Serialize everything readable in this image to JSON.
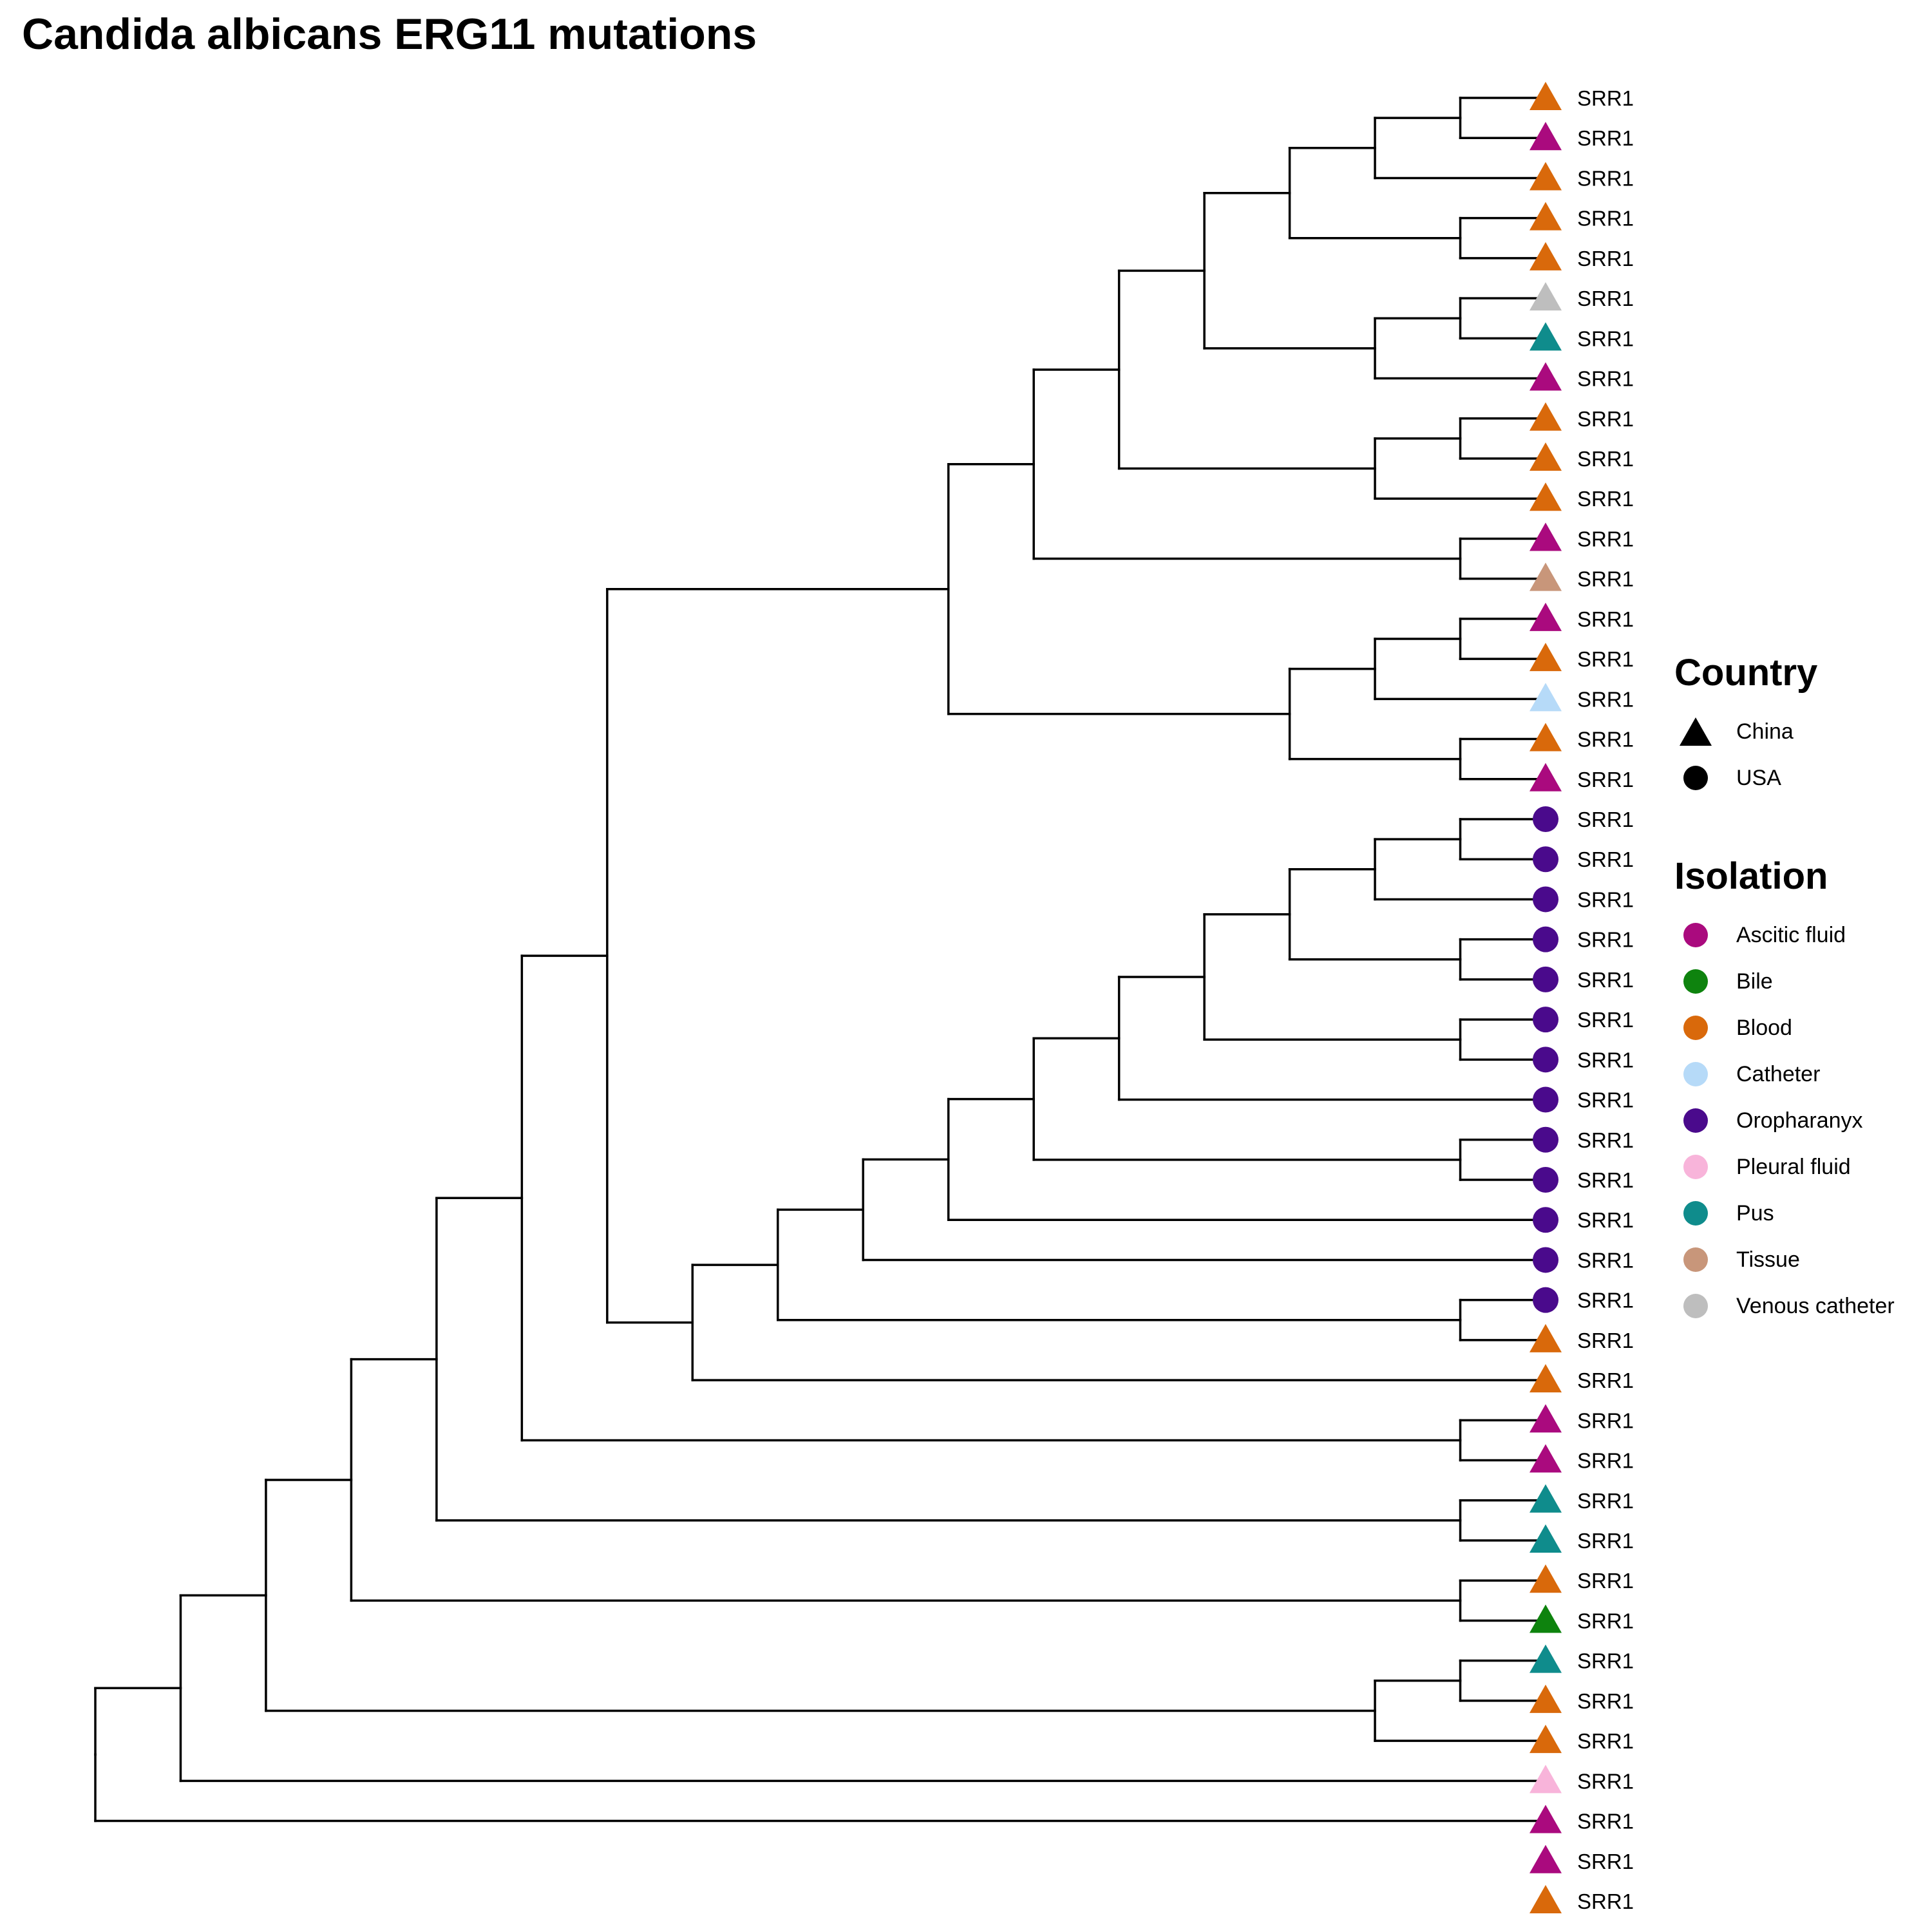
{
  "title": "Candida albicans ERG11 mutations",
  "legend": {
    "country_title": "Country",
    "country_items": [
      {
        "label": "China",
        "shape": "triangle"
      },
      {
        "label": "USA",
        "shape": "circle"
      }
    ],
    "isolation_title": "Isolation",
    "isolation_items": [
      {
        "label": "Ascitic fluid",
        "color": "#AA0A7E"
      },
      {
        "label": "Bile",
        "color": "#0E830E"
      },
      {
        "label": "Blood",
        "color": "#D9690B"
      },
      {
        "label": "Catheter",
        "color": "#B6DAF8"
      },
      {
        "label": "Oropharanyx",
        "color": "#4A0A8C"
      },
      {
        "label": "Pleural fluid",
        "color": "#F8B4DA"
      },
      {
        "label": "Pus",
        "color": "#0F8C8C"
      },
      {
        "label": "Tissue",
        "color": "#C8967A"
      },
      {
        "label": "Venous catheter",
        "color": "#BEBEBE"
      }
    ]
  },
  "tree": {
    "tips": [
      {
        "label": "SRR1",
        "isolation": "Blood",
        "country": "China"
      },
      {
        "label": "SRR1",
        "isolation": "Ascitic fluid",
        "country": "China"
      },
      {
        "label": "SRR1",
        "isolation": "Blood",
        "country": "China"
      },
      {
        "label": "SRR1",
        "isolation": "Blood",
        "country": "China"
      },
      {
        "label": "SRR1",
        "isolation": "Blood",
        "country": "China"
      },
      {
        "label": "SRR1",
        "isolation": "Venous catheter",
        "country": "China"
      },
      {
        "label": "SRR1",
        "isolation": "Pus",
        "country": "China"
      },
      {
        "label": "SRR1",
        "isolation": "Ascitic fluid",
        "country": "China"
      },
      {
        "label": "SRR1",
        "isolation": "Blood",
        "country": "China"
      },
      {
        "label": "SRR1",
        "isolation": "Blood",
        "country": "China"
      },
      {
        "label": "SRR1",
        "isolation": "Blood",
        "country": "China"
      },
      {
        "label": "SRR1",
        "isolation": "Ascitic fluid",
        "country": "China"
      },
      {
        "label": "SRR1",
        "isolation": "Tissue",
        "country": "China"
      },
      {
        "label": "SRR1",
        "isolation": "Ascitic fluid",
        "country": "China"
      },
      {
        "label": "SRR1",
        "isolation": "Blood",
        "country": "China"
      },
      {
        "label": "SRR1",
        "isolation": "Catheter",
        "country": "China"
      },
      {
        "label": "SRR1",
        "isolation": "Blood",
        "country": "China"
      },
      {
        "label": "SRR1",
        "isolation": "Ascitic fluid",
        "country": "China"
      },
      {
        "label": "SRR1",
        "isolation": "Oropharanyx",
        "country": "USA"
      },
      {
        "label": "SRR1",
        "isolation": "Oropharanyx",
        "country": "USA"
      },
      {
        "label": "SRR1",
        "isolation": "Oropharanyx",
        "country": "USA"
      },
      {
        "label": "SRR1",
        "isolation": "Oropharanyx",
        "country": "USA"
      },
      {
        "label": "SRR1",
        "isolation": "Oropharanyx",
        "country": "USA"
      },
      {
        "label": "SRR1",
        "isolation": "Oropharanyx",
        "country": "USA"
      },
      {
        "label": "SRR1",
        "isolation": "Oropharanyx",
        "country": "USA"
      },
      {
        "label": "SRR1",
        "isolation": "Oropharanyx",
        "country": "USA"
      },
      {
        "label": "SRR1",
        "isolation": "Oropharanyx",
        "country": "USA"
      },
      {
        "label": "SRR1",
        "isolation": "Oropharanyx",
        "country": "USA"
      },
      {
        "label": "SRR1",
        "isolation": "Oropharanyx",
        "country": "USA"
      },
      {
        "label": "SRR1",
        "isolation": "Oropharanyx",
        "country": "USA"
      },
      {
        "label": "SRR1",
        "isolation": "Oropharanyx",
        "country": "USA"
      },
      {
        "label": "SRR1",
        "isolation": "Blood",
        "country": "China"
      },
      {
        "label": "SRR1",
        "isolation": "Blood",
        "country": "China"
      },
      {
        "label": "SRR1",
        "isolation": "Ascitic fluid",
        "country": "China"
      },
      {
        "label": "SRR1",
        "isolation": "Ascitic fluid",
        "country": "China"
      },
      {
        "label": "SRR1",
        "isolation": "Pus",
        "country": "China"
      },
      {
        "label": "SRR1",
        "isolation": "Pus",
        "country": "China"
      },
      {
        "label": "SRR1",
        "isolation": "Blood",
        "country": "China"
      },
      {
        "label": "SRR1",
        "isolation": "Bile",
        "country": "China"
      },
      {
        "label": "SRR1",
        "isolation": "Pus",
        "country": "China"
      },
      {
        "label": "SRR1",
        "isolation": "Blood",
        "country": "China"
      },
      {
        "label": "SRR1",
        "isolation": "Blood",
        "country": "China"
      },
      {
        "label": "SRR1",
        "isolation": "Pleural fluid",
        "country": "China"
      },
      {
        "label": "SRR1",
        "isolation": "Ascitic fluid",
        "country": "China"
      },
      {
        "label": "SRR1",
        "isolation": "Ascitic fluid",
        "country": "China"
      },
      {
        "label": "SRR1",
        "isolation": "Blood",
        "country": "China"
      }
    ],
    "newick": "((((((((((((((0,1),2),(3,4)),((5,6),7)),((8,9),10)),(11,12)),(((13,14),15),(16,17))),((((((((((18,19),20),(21,22)),(23,24)),25),(26,27)),28),29),(30,31)),32)),(33,34)),(35,36)),(37,38)),((39,40),41)),42),43),44),45)"
  }
}
